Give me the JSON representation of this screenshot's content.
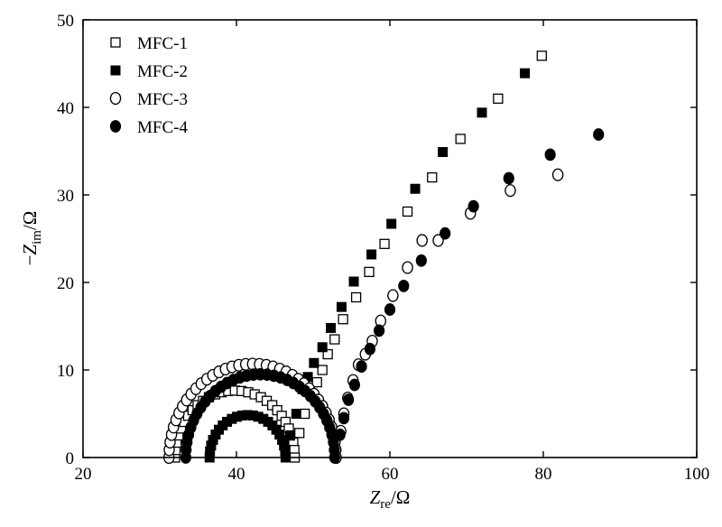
{
  "chart_data": {
    "type": "scatter",
    "xlabel_main": "Z",
    "xlabel_sub": "re",
    "xlabel_unit": "/Ω",
    "ylabel_prefix": "−",
    "ylabel_main": "Z",
    "ylabel_sub": "im",
    "ylabel_unit": "/Ω",
    "xlim": [
      20,
      100
    ],
    "ylim": [
      0,
      50
    ],
    "xticks": [
      20,
      40,
      60,
      80,
      100
    ],
    "yticks": [
      0,
      10,
      20,
      30,
      40,
      50
    ],
    "grid": false,
    "legend_position": "top-left",
    "series": [
      {
        "name": "MFC-1",
        "marker": "square-open",
        "semicircle": {
          "x_start": 32.0,
          "x_end": 47.6,
          "points": 28
        },
        "tail": [
          [
            48.2,
            2.8
          ],
          [
            48.9,
            5.0
          ],
          [
            49.7,
            7.2
          ],
          [
            50.5,
            8.6
          ],
          [
            51.2,
            10.0
          ],
          [
            51.9,
            11.8
          ],
          [
            52.8,
            13.5
          ],
          [
            53.9,
            15.8
          ],
          [
            55.6,
            18.3
          ],
          [
            57.3,
            21.2
          ],
          [
            59.3,
            24.4
          ],
          [
            62.3,
            28.1
          ],
          [
            65.5,
            32.0
          ],
          [
            69.2,
            36.4
          ],
          [
            74.1,
            41.0
          ],
          [
            79.8,
            45.9
          ]
        ]
      },
      {
        "name": "MFC-2",
        "marker": "square-filled",
        "semicircle": {
          "x_start": 36.5,
          "x_end": 46.4,
          "points": 22
        },
        "tail": [
          [
            47.0,
            2.5
          ],
          [
            47.8,
            5.0
          ],
          [
            48.6,
            7.8
          ],
          [
            49.3,
            9.2
          ],
          [
            50.1,
            10.8
          ],
          [
            51.2,
            12.6
          ],
          [
            52.3,
            14.8
          ],
          [
            53.7,
            17.2
          ],
          [
            55.3,
            20.1
          ],
          [
            57.6,
            23.2
          ],
          [
            60.2,
            26.7
          ],
          [
            63.3,
            30.7
          ],
          [
            66.9,
            34.9
          ],
          [
            72.0,
            39.4
          ],
          [
            77.6,
            43.9
          ]
        ]
      },
      {
        "name": "MFC-3",
        "marker": "circle-open",
        "semicircle": {
          "x_start": 31.2,
          "x_end": 53.0,
          "points": 38
        },
        "tail": [
          [
            53.6,
            3.0
          ],
          [
            54.0,
            5.0
          ],
          [
            54.5,
            6.8
          ],
          [
            55.2,
            8.8
          ],
          [
            55.9,
            10.6
          ],
          [
            56.8,
            11.8
          ],
          [
            57.7,
            13.3
          ],
          [
            58.8,
            15.6
          ],
          [
            60.4,
            18.5
          ],
          [
            62.3,
            21.7
          ],
          [
            64.2,
            24.8
          ],
          [
            66.3,
            24.8
          ],
          [
            70.5,
            27.9
          ],
          [
            75.7,
            30.5
          ],
          [
            81.9,
            32.3
          ]
        ]
      },
      {
        "name": "MFC-4",
        "marker": "circle-filled",
        "semicircle": {
          "x_start": 33.4,
          "x_end": 52.8,
          "points": 34
        },
        "tail": [
          [
            53.5,
            2.6
          ],
          [
            54.0,
            4.5
          ],
          [
            54.6,
            6.6
          ],
          [
            55.4,
            8.3
          ],
          [
            56.3,
            10.4
          ],
          [
            57.4,
            12.4
          ],
          [
            58.6,
            14.5
          ],
          [
            60.0,
            16.9
          ],
          [
            61.8,
            19.6
          ],
          [
            64.1,
            22.5
          ],
          [
            67.2,
            25.6
          ],
          [
            70.9,
            28.7
          ],
          [
            75.5,
            31.9
          ],
          [
            80.9,
            34.6
          ],
          [
            87.2,
            36.9
          ]
        ]
      }
    ]
  }
}
